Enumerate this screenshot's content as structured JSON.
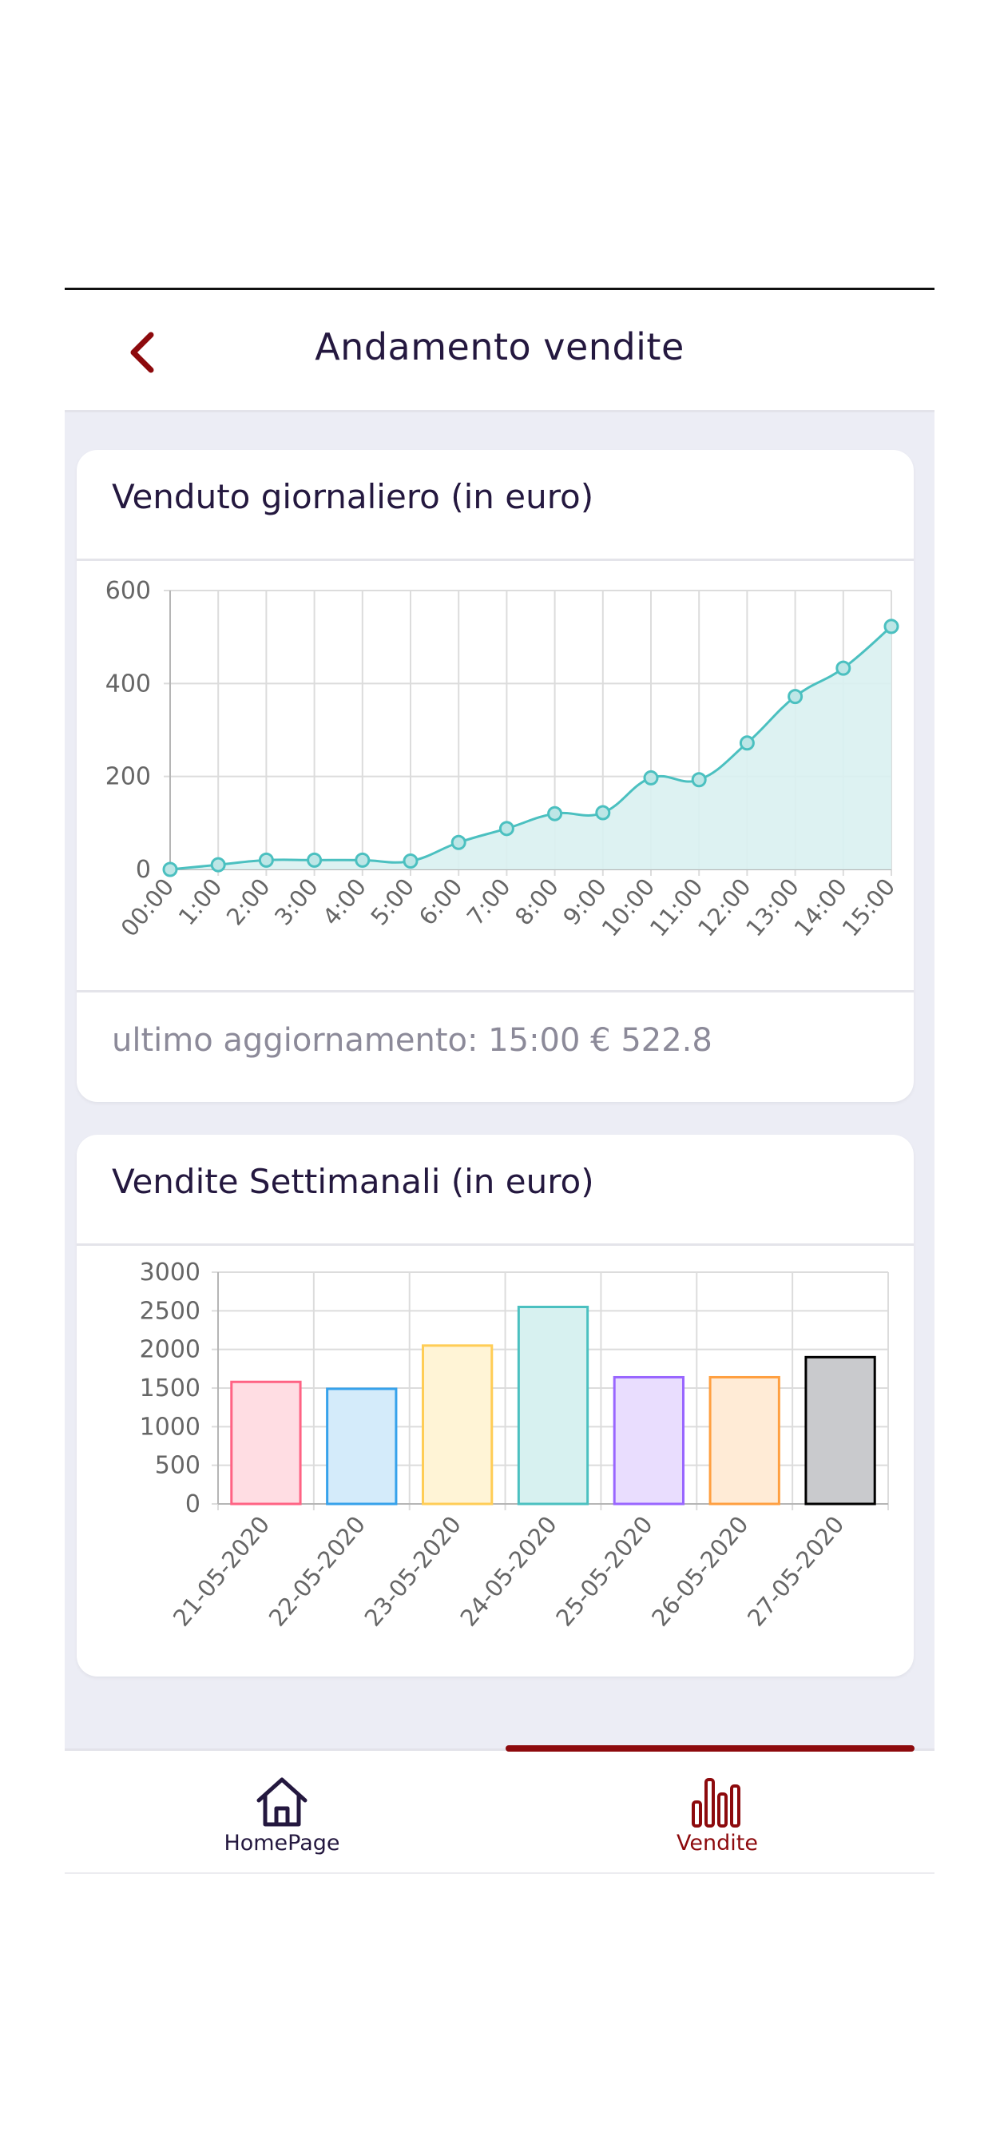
{
  "header": {
    "title": "Andamento vendite"
  },
  "colors": {
    "accent": "#8d0a0d",
    "text": "#24183f",
    "line": "#4bc0c0",
    "fill": "#d9f1f1"
  },
  "daily_card": {
    "title": "Venduto giornaliero (in euro)",
    "footer": "ultimo aggiornamento: 15:00 € 522.8"
  },
  "weekly_card": {
    "title": "Vendite Settimanali (in euro)"
  },
  "chart_data": [
    {
      "type": "line",
      "x": [
        "00:00",
        "1:00",
        "2:00",
        "3:00",
        "4:00",
        "5:00",
        "6:00",
        "7:00",
        "8:00",
        "9:00",
        "10:00",
        "11:00",
        "12:00",
        "13:00",
        "14:00",
        "15:00"
      ],
      "values": [
        0,
        10,
        20,
        20,
        20,
        18,
        58,
        88,
        120,
        122,
        197,
        193,
        272,
        372,
        433,
        522.8
      ],
      "yticks": [
        0,
        200,
        400,
        600
      ],
      "ylim": [
        0,
        600
      ],
      "grid": true,
      "fill": true
    },
    {
      "type": "bar",
      "categories": [
        "21-05-2020",
        "22-05-2020",
        "23-05-2020",
        "24-05-2020",
        "25-05-2020",
        "26-05-2020",
        "27-05-2020"
      ],
      "values": [
        1580,
        1490,
        2050,
        2550,
        1640,
        1640,
        1900
      ],
      "yticks": [
        0,
        500,
        1000,
        1500,
        2000,
        2500,
        3000
      ],
      "ylim": [
        0,
        3000
      ],
      "grid": true,
      "bar_fills": [
        "#ffdde3",
        "#d4ebfa",
        "#fff4d6",
        "#d7f1f0",
        "#e9ddfe",
        "#ffebd6",
        "#c9cacd"
      ],
      "bar_strokes": [
        "#ff6384",
        "#36a2eb",
        "#ffcd56",
        "#4bc0c0",
        "#9966ff",
        "#ff9f40",
        "#000000"
      ]
    }
  ],
  "tabs": [
    {
      "label": "HomePage",
      "icon": "home-icon"
    },
    {
      "label": "Vendite",
      "icon": "bar-chart-icon"
    }
  ]
}
